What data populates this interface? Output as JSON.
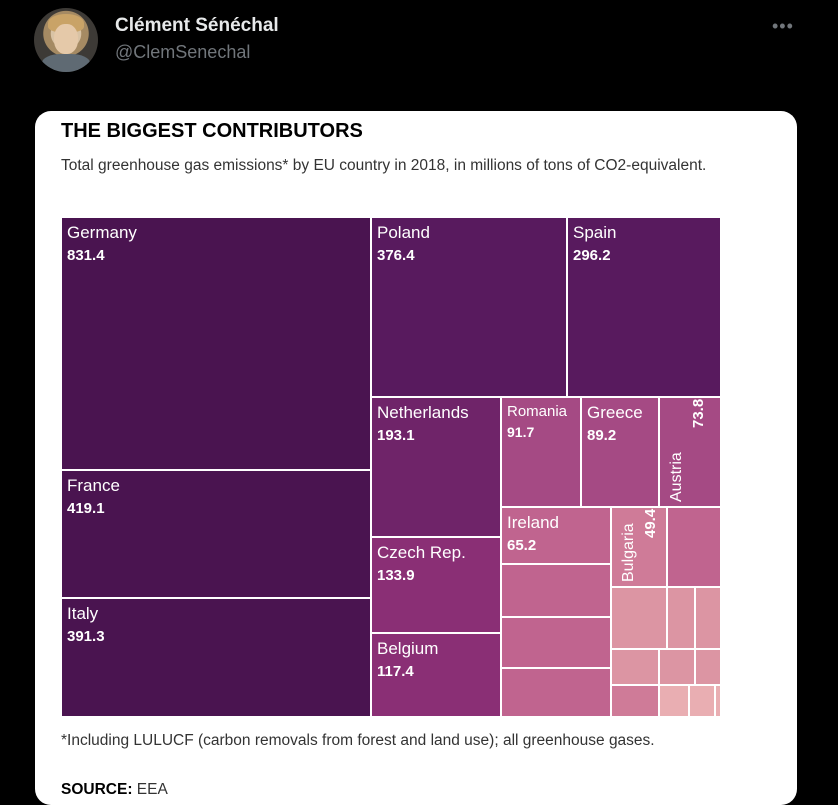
{
  "tweet": {
    "display_name": "Clément Sénéchal",
    "handle": "@ClemSenechal",
    "more_icon": "•••"
  },
  "chart_data": {
    "type": "treemap",
    "title": "THE BIGGEST CONTRIBUTORS",
    "subtitle": "Total greenhouse gas emissions* by EU country in 2018, in millions of tons of CO2-equivalent.",
    "units": "millions of tons of CO2-equivalent",
    "items": [
      {
        "name": "Germany",
        "value": 831.4,
        "label": "831.4"
      },
      {
        "name": "France",
        "value": 419.1,
        "label": "419.1"
      },
      {
        "name": "Italy",
        "value": 391.3,
        "label": "391.3"
      },
      {
        "name": "Poland",
        "value": 376.4,
        "label": "376.4"
      },
      {
        "name": "Spain",
        "value": 296.2,
        "label": "296.2"
      },
      {
        "name": "Netherlands",
        "value": 193.1,
        "label": "193.1"
      },
      {
        "name": "Czech Rep.",
        "value": 133.9,
        "label": "133.9"
      },
      {
        "name": "Belgium",
        "value": 117.4,
        "label": "117.4"
      },
      {
        "name": "Romania",
        "value": 91.7,
        "label": "91.7"
      },
      {
        "name": "Greece",
        "value": 89.2,
        "label": "89.2"
      },
      {
        "name": "Austria",
        "value": 73.8,
        "label": "73.8"
      },
      {
        "name": "Ireland",
        "value": 65.2,
        "label": "65.2"
      },
      {
        "name": "Bulgaria",
        "value": 49.4,
        "label": "49.4"
      }
    ],
    "footnote": "*Including LULUCF (carbon removals from forest and land use); all greenhouse gases.",
    "source_label": "SOURCE:",
    "source_value": "EEA",
    "colors": {
      "darkest": "#4a1450",
      "dark": "#581a5e",
      "mid_dark": "#6f2469",
      "mid": "#8a2f75",
      "mid_light": "#a54a84",
      "light": "#c0648f",
      "lighter": "#cf7b98",
      "lightest": "#dc95a3",
      "pale": "#e9aeb2"
    }
  }
}
